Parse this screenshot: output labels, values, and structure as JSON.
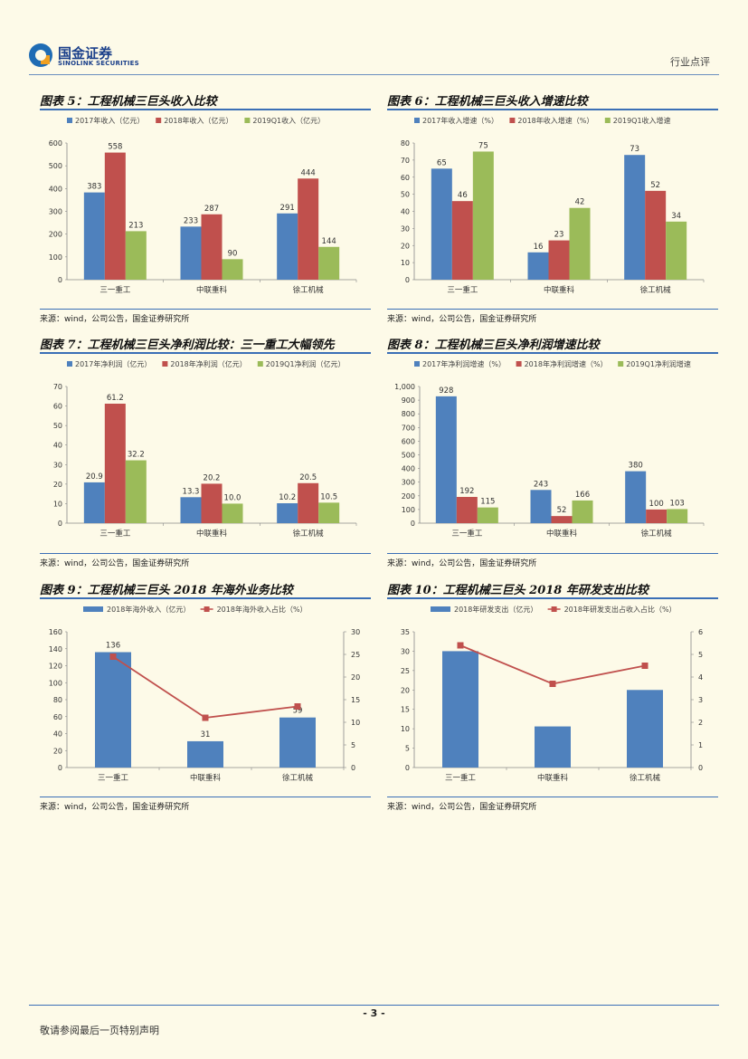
{
  "header": {
    "logo_cn": "国金证券",
    "logo_en": "SINOLINK SECURITIES",
    "report_type": "行业点评"
  },
  "colors": {
    "s1": "#4f81bd",
    "s2": "#c0504d",
    "s3": "#9bbb59",
    "rule": "#3b6fb6"
  },
  "figures": [
    {
      "title": "图表 5：工程机械三巨头收入比较",
      "source": "来源：wind，公司公告，国金证券研究所"
    },
    {
      "title": "图表 6：工程机械三巨头收入增速比较",
      "source": "来源：wind，公司公告，国金证券研究所"
    },
    {
      "title": "图表 7：工程机械三巨头净利润比较：三一重工大幅领先",
      "source": "来源：wind，公司公告，国金证券研究所"
    },
    {
      "title": "图表 8：工程机械三巨头净利润增速比较",
      "source": "来源：wind，公司公告，国金证券研究所"
    },
    {
      "title": "图表 9：工程机械三巨头 2018 年海外业务比较",
      "source": "来源：wind，公司公告，国金证券研究所"
    },
    {
      "title": "图表 10：工程机械三巨头 2018 年研发支出比较",
      "source": "来源：wind，公司公告，国金证券研究所"
    }
  ],
  "chart_data": [
    {
      "type": "bar",
      "categories": [
        "三一重工",
        "中联重科",
        "徐工机械"
      ],
      "series": [
        {
          "name": "2017年收入（亿元）",
          "values": [
            383,
            233,
            291
          ]
        },
        {
          "name": "2018年收入（亿元）",
          "values": [
            558,
            287,
            444
          ]
        },
        {
          "name": "2019Q1收入（亿元）",
          "values": [
            213,
            90,
            144
          ]
        }
      ],
      "labels": [
        [
          "383",
          "233",
          "291"
        ],
        [
          "558",
          "287",
          "444"
        ],
        [
          "213",
          "90",
          "144"
        ]
      ],
      "ylim": [
        0,
        600
      ],
      "yticks": [
        "0",
        "100",
        "200",
        "300",
        "400",
        "500",
        "600"
      ]
    },
    {
      "type": "bar",
      "categories": [
        "三一重工",
        "中联重科",
        "徐工机械"
      ],
      "series": [
        {
          "name": "2017年收入增速（%）",
          "values": [
            65,
            16,
            73
          ]
        },
        {
          "name": "2018年收入增速（%）",
          "values": [
            46,
            23,
            52
          ]
        },
        {
          "name": "2019Q1收入增速",
          "values": [
            75,
            42,
            34
          ]
        }
      ],
      "labels": [
        [
          "65",
          "16",
          "73"
        ],
        [
          "46",
          "23",
          "52"
        ],
        [
          "75",
          "42",
          "34"
        ]
      ],
      "ylim": [
        0,
        80
      ],
      "yticks": [
        "0",
        "10",
        "20",
        "30",
        "40",
        "50",
        "60",
        "70",
        "80"
      ]
    },
    {
      "type": "bar",
      "categories": [
        "三一重工",
        "中联重科",
        "徐工机械"
      ],
      "series": [
        {
          "name": "2017年净利润（亿元）",
          "values": [
            20.9,
            13.3,
            10.2
          ]
        },
        {
          "name": "2018年净利润（亿元）",
          "values": [
            61.2,
            20.2,
            20.5
          ]
        },
        {
          "name": "2019Q1净利润（亿元）",
          "values": [
            32.2,
            10.0,
            10.5
          ]
        }
      ],
      "labels": [
        [
          "20.9",
          "13.3",
          "10.2"
        ],
        [
          "61.2",
          "20.2",
          "20.5"
        ],
        [
          "32.2",
          "10.0",
          "10.5"
        ]
      ],
      "ylim": [
        0,
        70
      ],
      "yticks": [
        "0",
        "10",
        "20",
        "30",
        "40",
        "50",
        "60",
        "70"
      ]
    },
    {
      "type": "bar",
      "categories": [
        "三一重工",
        "中联重科",
        "徐工机械"
      ],
      "series": [
        {
          "name": "2017年净利润增速（%）",
          "values": [
            928,
            243,
            380
          ]
        },
        {
          "name": "2018年净利润增速（%）",
          "values": [
            192,
            52,
            100
          ]
        },
        {
          "name": "2019Q1净利润增速",
          "values": [
            115,
            166,
            103
          ]
        }
      ],
      "labels": [
        [
          "928",
          "243",
          "380"
        ],
        [
          "192",
          "52",
          "100"
        ],
        [
          "115",
          "166",
          "103"
        ]
      ],
      "ylim": [
        0,
        1000
      ],
      "yticks": [
        "0",
        "100",
        "200",
        "300",
        "400",
        "500",
        "600",
        "700",
        "800",
        "900",
        "1,000"
      ]
    },
    {
      "type": "bar+line",
      "categories": [
        "三一重工",
        "中联重科",
        "徐工机械"
      ],
      "series": [
        {
          "name": "2018年海外收入（亿元）",
          "kind": "bar",
          "axis": "left",
          "values": [
            136,
            31,
            59
          ]
        },
        {
          "name": "2018年海外收入占比（%）",
          "kind": "line",
          "axis": "right",
          "values": [
            24.5,
            11.0,
            13.5
          ]
        }
      ],
      "bar_labels": [
        "136",
        "31",
        "59"
      ],
      "ylim": [
        0,
        160
      ],
      "yticks": [
        "0",
        "20",
        "40",
        "60",
        "80",
        "100",
        "120",
        "140",
        "160"
      ],
      "y2lim": [
        0,
        30
      ],
      "y2ticks": [
        "0",
        "5",
        "10",
        "15",
        "20",
        "25",
        "30"
      ]
    },
    {
      "type": "bar+line",
      "categories": [
        "三一重工",
        "中联重科",
        "徐工机械"
      ],
      "series": [
        {
          "name": "2018年研发支出（亿元）",
          "kind": "bar",
          "axis": "left",
          "values": [
            30.0,
            10.6,
            20.0
          ]
        },
        {
          "name": "2018年研发支出占收入占比（%）",
          "kind": "line",
          "axis": "right",
          "values": [
            5.4,
            3.7,
            4.5
          ]
        }
      ],
      "bar_labels": [],
      "ylim": [
        0,
        35
      ],
      "yticks": [
        "0",
        "5",
        "10",
        "15",
        "20",
        "25",
        "30",
        "35"
      ],
      "y2lim": [
        0,
        6
      ],
      "y2ticks": [
        "0",
        "1",
        "2",
        "3",
        "4",
        "5",
        "6"
      ]
    }
  ],
  "footer": {
    "page_number": "- 3 -",
    "disclaimer": "敬请参阅最后一页特别声明"
  }
}
